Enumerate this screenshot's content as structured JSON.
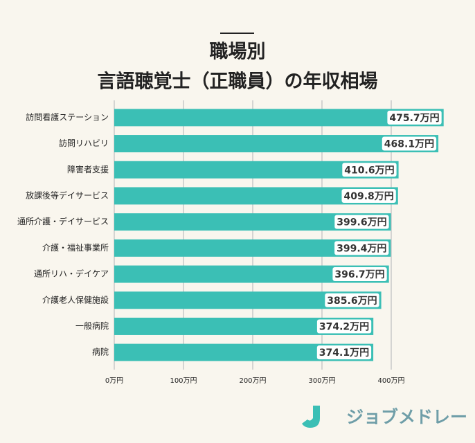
{
  "chart_data": {
    "type": "hbar",
    "title": [
      "職場別",
      "言語聴覚士（正職員）の年収相場"
    ],
    "categories": [
      "訪問看護ステーション",
      "訪問リハビリ",
      "障害者支援",
      "放課後等デイサービス",
      "通所介護・デイサービス",
      "介護・福祉事業所",
      "通所リハ・デイケア",
      "介護老人保健施設",
      "一般病院",
      "病院"
    ],
    "values": [
      475.7,
      468.1,
      410.6,
      409.8,
      399.6,
      399.4,
      396.7,
      385.6,
      374.2,
      374.1
    ],
    "value_labels": [
      "475.7万円",
      "468.1万円",
      "410.6万円",
      "409.8万円",
      "399.6万円",
      "399.4万円",
      "396.7万円",
      "385.6万円",
      "374.2万円",
      "374.1万円"
    ],
    "color": "#3bbfb5",
    "xlim": [
      0,
      520
    ],
    "xticks": [
      {
        "value": 0,
        "label": "0万円"
      },
      {
        "value": 100,
        "label": "100万円"
      },
      {
        "value": 200,
        "label": "200万円"
      },
      {
        "value": 300,
        "label": "300万円"
      },
      {
        "value": 400,
        "label": "400万円"
      }
    ],
    "grid": true
  },
  "logo": "ジョブメドレー"
}
